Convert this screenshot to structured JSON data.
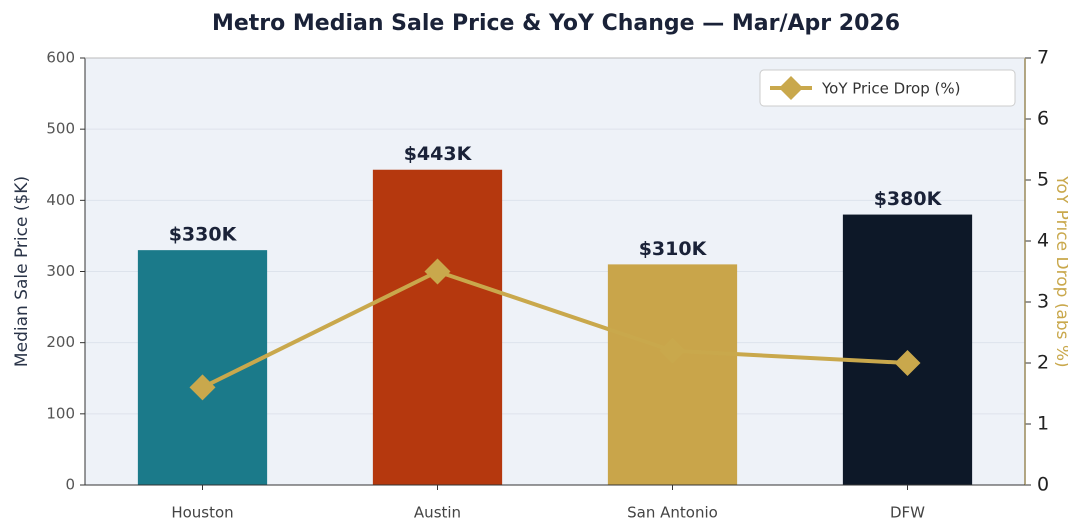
{
  "chart_data": {
    "type": "bar",
    "title": "Metro Median Sale Price & YoY Change — Mar/Apr 2026",
    "categories": [
      "Houston",
      "Austin",
      "San Antonio",
      "DFW"
    ],
    "values": [
      330,
      443,
      310,
      380
    ],
    "value_labels": [
      "$330K",
      "$443K",
      "$310K",
      "$380K"
    ],
    "colors": [
      "#1b7a8a",
      "#b5380e",
      "#c9a54a",
      "#0d1828"
    ],
    "ylabel": "Median Sale Price ($K)",
    "ylim": [
      0,
      600
    ],
    "yticks": [
      0,
      100,
      200,
      300,
      400,
      500,
      600
    ],
    "grid": true,
    "y2label": "YoY Price Drop (abs %)",
    "y2lim": [
      0,
      7
    ],
    "y2ticks": [
      0,
      1,
      2,
      3,
      4,
      5,
      6,
      7
    ],
    "series": [
      {
        "name": "YoY Price Drop (%)",
        "color": "#c9a84c",
        "axis": "y2",
        "values": [
          1.6,
          3.5,
          2.2,
          2.0
        ]
      }
    ],
    "legend": "upper right"
  }
}
